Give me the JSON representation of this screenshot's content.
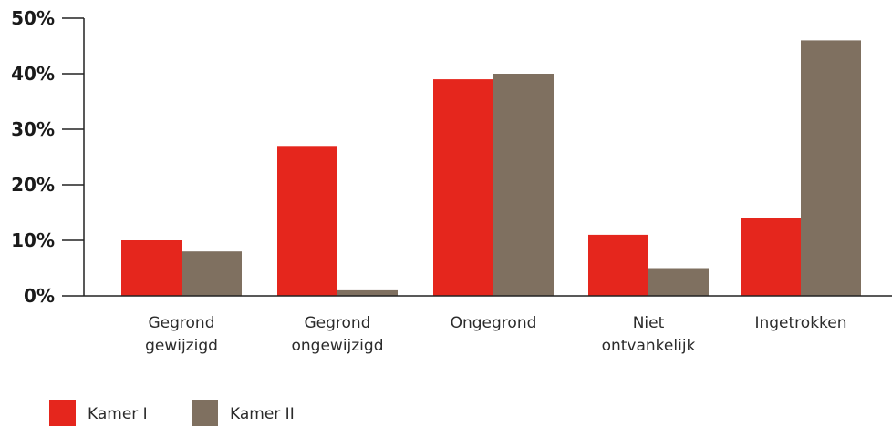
{
  "chart_data": {
    "type": "bar",
    "categories": [
      [
        "Gegrond",
        "gewijzigd"
      ],
      [
        "Gegrond",
        "ongewijzigd"
      ],
      [
        "Ongegrond"
      ],
      [
        "Niet",
        "ontvankelijk"
      ],
      [
        "Ingetrokken"
      ]
    ],
    "series": [
      {
        "name": "Kamer I",
        "color": "#e5261d",
        "values": [
          10,
          27,
          39,
          11,
          14
        ]
      },
      {
        "name": "Kamer II",
        "color": "#7f7060",
        "values": [
          8,
          1,
          40,
          5,
          46
        ]
      }
    ],
    "yticks": [
      "0%",
      "10%",
      "20%",
      "30%",
      "40%",
      "50%"
    ],
    "ylim": [
      0,
      50
    ],
    "title": "",
    "xlabel": "",
    "ylabel": "",
    "legend_position": "bottom-left",
    "grid": false
  }
}
